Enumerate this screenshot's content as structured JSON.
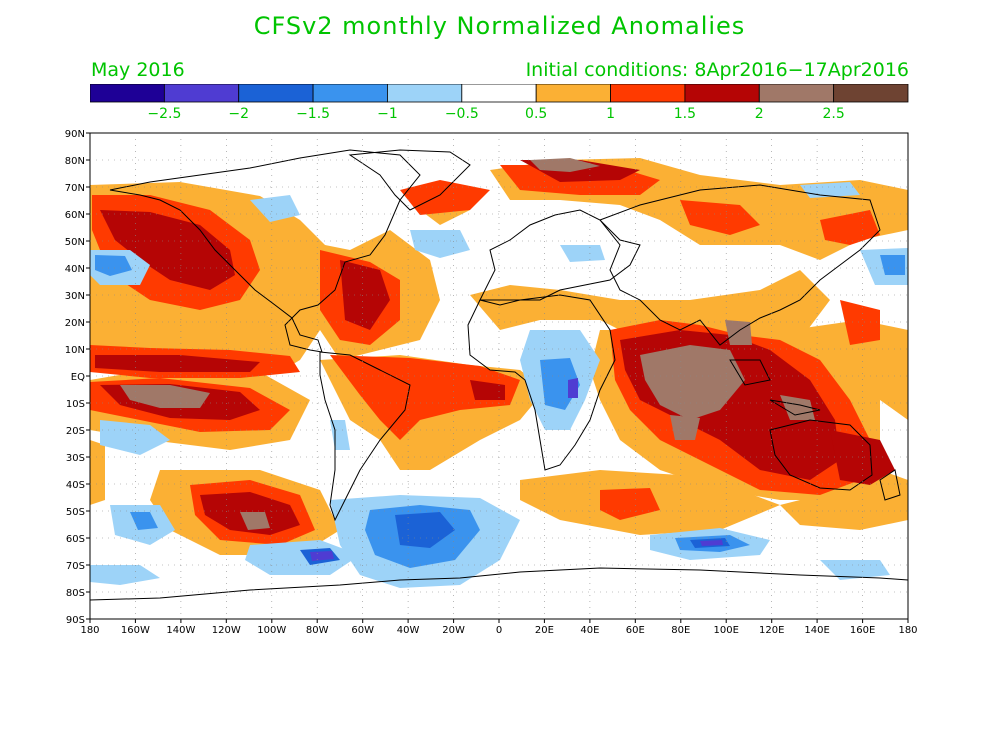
{
  "title": "CFSv2 monthly Normalized Anomalies",
  "subtitle_left": "May 2016",
  "subtitle_right": "Initial conditions: 8Apr2016−17Apr2016",
  "colorbar": {
    "colors": [
      "#1e0096",
      "#4f3cd2",
      "#1b62d6",
      "#3a93ee",
      "#9dd3f8",
      "#ffffff",
      "#fbb034",
      "#ff3a00",
      "#b50505",
      "#a07868",
      "#6e4332"
    ],
    "labels": [
      "−2.5",
      "−2",
      "−1.5",
      "−1",
      "−0.5",
      "0.5",
      "1",
      "1.5",
      "2",
      "2.5"
    ]
  },
  "axes": {
    "lat_labels": [
      "90N",
      "80N",
      "70N",
      "60N",
      "50N",
      "40N",
      "30N",
      "20N",
      "10N",
      "EQ",
      "10S",
      "20S",
      "30S",
      "40S",
      "50S",
      "60S",
      "70S",
      "80S",
      "90S"
    ],
    "lon_labels": [
      "180",
      "160W",
      "140W",
      "120W",
      "100W",
      "80W",
      "60W",
      "40W",
      "20W",
      "0",
      "20E",
      "40E",
      "60E",
      "80E",
      "100E",
      "120E",
      "140E",
      "160E",
      "180"
    ]
  },
  "colors": {
    "text": "#00c400",
    "coast": "#000000"
  }
}
